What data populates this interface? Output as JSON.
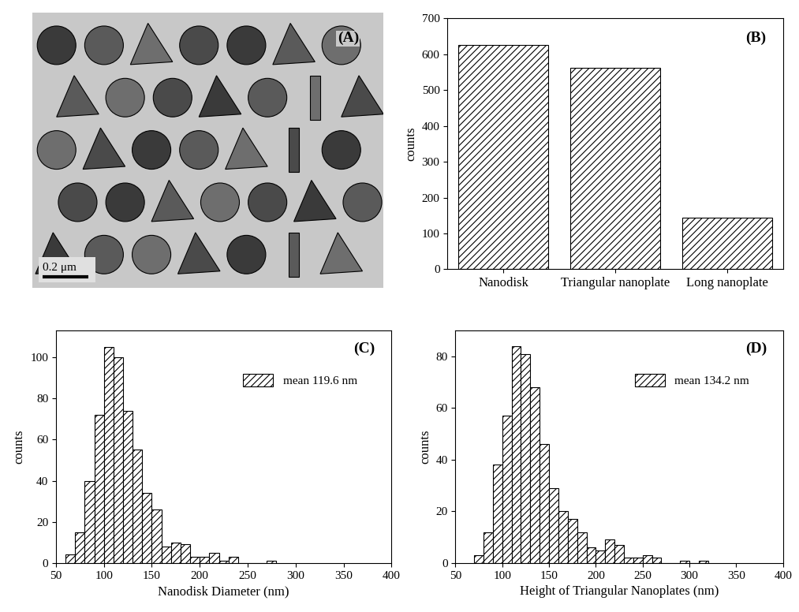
{
  "chart_data": [
    {
      "type": "image",
      "annotations": [
        "(A)",
        "0.2 μm"
      ]
    },
    {
      "type": "bar",
      "annotations": [
        "(B)"
      ],
      "categories": [
        "Nanodisk",
        "Triangular nanoplate",
        "Long nanoplate"
      ],
      "values": [
        625,
        562,
        145
      ],
      "color": "white",
      "y_label": "counts",
      "ylim": [
        0,
        700
      ],
      "yticks": [
        0,
        100,
        200,
        300,
        400,
        500,
        600,
        700
      ]
    },
    {
      "type": "histogram",
      "annotations": [
        "(C)"
      ],
      "bins": [
        60,
        70,
        80,
        90,
        100,
        110,
        120,
        130,
        140,
        150,
        160,
        170,
        180,
        190,
        200,
        210,
        220,
        230,
        240,
        250,
        260,
        270,
        280
      ],
      "series": [
        {
          "name": "mean 119.6 nm",
          "color": "white",
          "values": [
            4,
            15,
            40,
            72,
            105,
            100,
            74,
            55,
            34,
            26,
            8,
            10,
            9,
            3,
            3,
            5,
            1,
            3,
            0,
            0,
            0,
            1
          ]
        }
      ],
      "x_label": "Nanodisk Diameter (nm)",
      "y_label": "counts",
      "xlim": [
        50,
        400
      ],
      "xticks": [
        50,
        100,
        150,
        200,
        250,
        300,
        350,
        400
      ],
      "ylim": [
        0,
        113
      ],
      "yticks": [
        0,
        20,
        40,
        60,
        80,
        100
      ],
      "legend": "upper right"
    },
    {
      "type": "histogram",
      "annotations": [
        "(D)"
      ],
      "bins": [
        70,
        80,
        90,
        100,
        110,
        120,
        130,
        140,
        150,
        160,
        170,
        180,
        190,
        200,
        210,
        220,
        230,
        240,
        250,
        260,
        270,
        280,
        290,
        300,
        310,
        320
      ],
      "series": [
        {
          "name": "mean 134.2 nm",
          "color": "white",
          "values": [
            3,
            12,
            38,
            57,
            84,
            81,
            68,
            46,
            29,
            20,
            17,
            12,
            6,
            5,
            9,
            7,
            2,
            2,
            3,
            2,
            0,
            0,
            1,
            0,
            1
          ]
        }
      ],
      "x_label": "Height of Triangular Nanoplates (nm)",
      "y_label": "counts",
      "xlim": [
        50,
        400
      ],
      "xticks": [
        50,
        100,
        150,
        200,
        250,
        300,
        350,
        400
      ],
      "ylim": [
        0,
        90
      ],
      "yticks": [
        0,
        20,
        40,
        60,
        80
      ],
      "legend": "upper right"
    }
  ]
}
